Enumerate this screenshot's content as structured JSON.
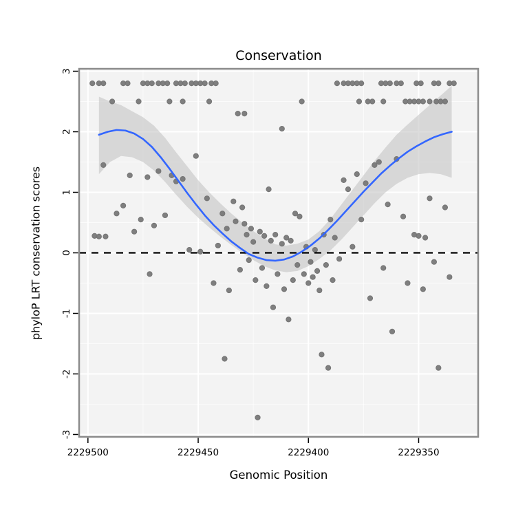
{
  "chart_data": {
    "type": "scatter",
    "title": "Conservation",
    "xlabel": "Genomic Position",
    "ylabel": "phyloP LRT conservation scores",
    "x_axis_reversed": true,
    "x_domain": [
      2229504,
      2229323
    ],
    "y_domain": [
      -3.04,
      3.04
    ],
    "x_ticks": [
      2229500,
      2229450,
      2229400,
      2229350
    ],
    "x_minor_ticks": [
      2229475,
      2229425,
      2229375
    ],
    "y_ticks": [
      3,
      2,
      1,
      0,
      -1,
      -2,
      -3
    ],
    "y_minor_ticks": [
      -2.5,
      -1.5,
      -0.5,
      0.5,
      1.5,
      2.5
    ],
    "reference_line_y": 0,
    "legend": "none",
    "grid": "on",
    "colors": {
      "point": "#757575",
      "smooth_line": "#3366ff",
      "band": "#bfbfbf",
      "reference_line": "#000000",
      "panel_bg": "#f3f3f3",
      "grid_major": "#ffffff",
      "grid_minor": "#ffffff",
      "panel_border": "#8c8c8c"
    },
    "points": [
      [
        2229498,
        2.8
      ],
      [
        2229495,
        2.8
      ],
      [
        2229493,
        2.8
      ],
      [
        2229484,
        2.8
      ],
      [
        2229482,
        2.8
      ],
      [
        2229475,
        2.8
      ],
      [
        2229473,
        2.8
      ],
      [
        2229471,
        2.8
      ],
      [
        2229468,
        2.8
      ],
      [
        2229466,
        2.8
      ],
      [
        2229464,
        2.8
      ],
      [
        2229460,
        2.8
      ],
      [
        2229458,
        2.8
      ],
      [
        2229456,
        2.8
      ],
      [
        2229453,
        2.8
      ],
      [
        2229451,
        2.8
      ],
      [
        2229449,
        2.8
      ],
      [
        2229447,
        2.8
      ],
      [
        2229444,
        2.8
      ],
      [
        2229442,
        2.8
      ],
      [
        2229387,
        2.8
      ],
      [
        2229384,
        2.8
      ],
      [
        2229382,
        2.8
      ],
      [
        2229380,
        2.8
      ],
      [
        2229378,
        2.8
      ],
      [
        2229376,
        2.8
      ],
      [
        2229367,
        2.8
      ],
      [
        2229365,
        2.8
      ],
      [
        2229363,
        2.8
      ],
      [
        2229360,
        2.8
      ],
      [
        2229358,
        2.8
      ],
      [
        2229351,
        2.8
      ],
      [
        2229349,
        2.8
      ],
      [
        2229343,
        2.8
      ],
      [
        2229341,
        2.8
      ],
      [
        2229336,
        2.8
      ],
      [
        2229334,
        2.8
      ],
      [
        2229489,
        2.5
      ],
      [
        2229477,
        2.5
      ],
      [
        2229463,
        2.5
      ],
      [
        2229457,
        2.5
      ],
      [
        2229445,
        2.5
      ],
      [
        2229403,
        2.5
      ],
      [
        2229377,
        2.5
      ],
      [
        2229373,
        2.5
      ],
      [
        2229371,
        2.5
      ],
      [
        2229366,
        2.5
      ],
      [
        2229356,
        2.5
      ],
      [
        2229354,
        2.5
      ],
      [
        2229352,
        2.5
      ],
      [
        2229350,
        2.5
      ],
      [
        2229348,
        2.5
      ],
      [
        2229345,
        2.5
      ],
      [
        2229342,
        2.5
      ],
      [
        2229340,
        2.5
      ],
      [
        2229338,
        2.5
      ],
      [
        2229432,
        2.3
      ],
      [
        2229429,
        2.3
      ],
      [
        2229412,
        2.05
      ],
      [
        2229497,
        0.28
      ],
      [
        2229495,
        0.27
      ],
      [
        2229492,
        0.27
      ],
      [
        2229493,
        1.45
      ],
      [
        2229487,
        0.65
      ],
      [
        2229484,
        0.78
      ],
      [
        2229481,
        1.28
      ],
      [
        2229479,
        0.35
      ],
      [
        2229476,
        0.55
      ],
      [
        2229473,
        1.25
      ],
      [
        2229472,
        -0.35
      ],
      [
        2229470,
        0.45
      ],
      [
        2229468,
        1.35
      ],
      [
        2229465,
        0.62
      ],
      [
        2229462,
        1.28
      ],
      [
        2229460,
        1.18
      ],
      [
        2229457,
        1.22
      ],
      [
        2229454,
        0.05
      ],
      [
        2229451,
        1.6
      ],
      [
        2229449,
        0.02
      ],
      [
        2229446,
        0.9
      ],
      [
        2229443,
        -0.5
      ],
      [
        2229441,
        0.12
      ],
      [
        2229439,
        0.65
      ],
      [
        2229438,
        -1.75
      ],
      [
        2229437,
        0.4
      ],
      [
        2229436,
        -0.62
      ],
      [
        2229434,
        0.85
      ],
      [
        2229433,
        0.52
      ],
      [
        2229431,
        -0.28
      ],
      [
        2229430,
        0.75
      ],
      [
        2229429,
        0.48
      ],
      [
        2229428,
        0.3
      ],
      [
        2229427,
        -0.12
      ],
      [
        2229426,
        0.4
      ],
      [
        2229425,
        0.18
      ],
      [
        2229424,
        -0.45
      ],
      [
        2229423,
        -2.72
      ],
      [
        2229422,
        0.35
      ],
      [
        2229421,
        -0.25
      ],
      [
        2229420,
        0.28
      ],
      [
        2229419,
        -0.55
      ],
      [
        2229418,
        1.05
      ],
      [
        2229417,
        0.2
      ],
      [
        2229416,
        -0.9
      ],
      [
        2229415,
        0.3
      ],
      [
        2229414,
        -0.35
      ],
      [
        2229412,
        0.15
      ],
      [
        2229411,
        -0.6
      ],
      [
        2229410,
        0.25
      ],
      [
        2229409,
        -1.1
      ],
      [
        2229408,
        0.2
      ],
      [
        2229407,
        -0.45
      ],
      [
        2229406,
        0.65
      ],
      [
        2229405,
        -0.2
      ],
      [
        2229404,
        0.6
      ],
      [
        2229402,
        -0.35
      ],
      [
        2229401,
        0.1
      ],
      [
        2229400,
        -0.5
      ],
      [
        2229399,
        -0.15
      ],
      [
        2229398,
        -0.4
      ],
      [
        2229397,
        0.05
      ],
      [
        2229396,
        -0.3
      ],
      [
        2229395,
        -0.62
      ],
      [
        2229394,
        -1.68
      ],
      [
        2229393,
        0.3
      ],
      [
        2229392,
        -0.2
      ],
      [
        2229391,
        -1.9
      ],
      [
        2229390,
        0.55
      ],
      [
        2229389,
        -0.45
      ],
      [
        2229388,
        0.25
      ],
      [
        2229386,
        -0.1
      ],
      [
        2229384,
        1.2
      ],
      [
        2229382,
        1.05
      ],
      [
        2229380,
        0.1
      ],
      [
        2229378,
        1.3
      ],
      [
        2229376,
        0.55
      ],
      [
        2229374,
        1.15
      ],
      [
        2229372,
        -0.75
      ],
      [
        2229370,
        1.45
      ],
      [
        2229368,
        1.5
      ],
      [
        2229366,
        -0.25
      ],
      [
        2229364,
        0.8
      ],
      [
        2229362,
        -1.3
      ],
      [
        2229360,
        1.55
      ],
      [
        2229357,
        0.6
      ],
      [
        2229355,
        -0.5
      ],
      [
        2229352,
        0.3
      ],
      [
        2229350,
        0.28
      ],
      [
        2229348,
        -0.6
      ],
      [
        2229347,
        0.25
      ],
      [
        2229345,
        0.9
      ],
      [
        2229343,
        -0.15
      ],
      [
        2229341,
        -1.9
      ],
      [
        2229338,
        0.75
      ],
      [
        2229336,
        -0.4
      ]
    ],
    "smooth_line": [
      [
        2229495,
        1.95
      ],
      [
        2229491,
        2.0
      ],
      [
        2229487,
        2.03
      ],
      [
        2229483,
        2.02
      ],
      [
        2229479,
        1.97
      ],
      [
        2229475,
        1.88
      ],
      [
        2229471,
        1.75
      ],
      [
        2229467,
        1.58
      ],
      [
        2229463,
        1.39
      ],
      [
        2229459,
        1.19
      ],
      [
        2229455,
        0.99
      ],
      [
        2229451,
        0.8
      ],
      [
        2229447,
        0.62
      ],
      [
        2229443,
        0.46
      ],
      [
        2229439,
        0.32
      ],
      [
        2229435,
        0.19
      ],
      [
        2229431,
        0.08
      ],
      [
        2229427,
        -0.02
      ],
      [
        2229423,
        -0.08
      ],
      [
        2229419,
        -0.12
      ],
      [
        2229415,
        -0.13
      ],
      [
        2229411,
        -0.11
      ],
      [
        2229407,
        -0.06
      ],
      [
        2229403,
        0.02
      ],
      [
        2229399,
        0.12
      ],
      [
        2229395,
        0.24
      ],
      [
        2229391,
        0.38
      ],
      [
        2229387,
        0.53
      ],
      [
        2229383,
        0.69
      ],
      [
        2229379,
        0.85
      ],
      [
        2229375,
        1.01
      ],
      [
        2229371,
        1.16
      ],
      [
        2229367,
        1.31
      ],
      [
        2229363,
        1.44
      ],
      [
        2229359,
        1.56
      ],
      [
        2229355,
        1.67
      ],
      [
        2229351,
        1.76
      ],
      [
        2229347,
        1.84
      ],
      [
        2229343,
        1.91
      ],
      [
        2229339,
        1.96
      ],
      [
        2229335,
        2.0
      ]
    ],
    "confidence_band": [
      [
        2229495,
        1.3,
        2.58
      ],
      [
        2229490,
        1.5,
        2.5
      ],
      [
        2229485,
        1.6,
        2.44
      ],
      [
        2229480,
        1.58,
        2.34
      ],
      [
        2229475,
        1.5,
        2.24
      ],
      [
        2229470,
        1.36,
        2.1
      ],
      [
        2229465,
        1.17,
        1.9
      ],
      [
        2229460,
        0.96,
        1.66
      ],
      [
        2229455,
        0.76,
        1.43
      ],
      [
        2229450,
        0.58,
        1.2
      ],
      [
        2229445,
        0.42,
        1.0
      ],
      [
        2229440,
        0.27,
        0.82
      ],
      [
        2229435,
        0.13,
        0.65
      ],
      [
        2229430,
        0.0,
        0.5
      ],
      [
        2229425,
        -0.12,
        0.36
      ],
      [
        2229420,
        -0.22,
        0.24
      ],
      [
        2229415,
        -0.29,
        0.14
      ],
      [
        2229410,
        -0.32,
        0.12
      ],
      [
        2229405,
        -0.3,
        0.15
      ],
      [
        2229400,
        -0.22,
        0.22
      ],
      [
        2229395,
        -0.1,
        0.36
      ],
      [
        2229390,
        0.04,
        0.56
      ],
      [
        2229385,
        0.22,
        0.8
      ],
      [
        2229380,
        0.42,
        1.04
      ],
      [
        2229375,
        0.62,
        1.28
      ],
      [
        2229370,
        0.82,
        1.52
      ],
      [
        2229365,
        1.0,
        1.74
      ],
      [
        2229360,
        1.14,
        1.95
      ],
      [
        2229355,
        1.24,
        2.12
      ],
      [
        2229350,
        1.3,
        2.28
      ],
      [
        2229345,
        1.32,
        2.44
      ],
      [
        2229340,
        1.3,
        2.6
      ],
      [
        2229335,
        1.24,
        2.76
      ]
    ]
  }
}
